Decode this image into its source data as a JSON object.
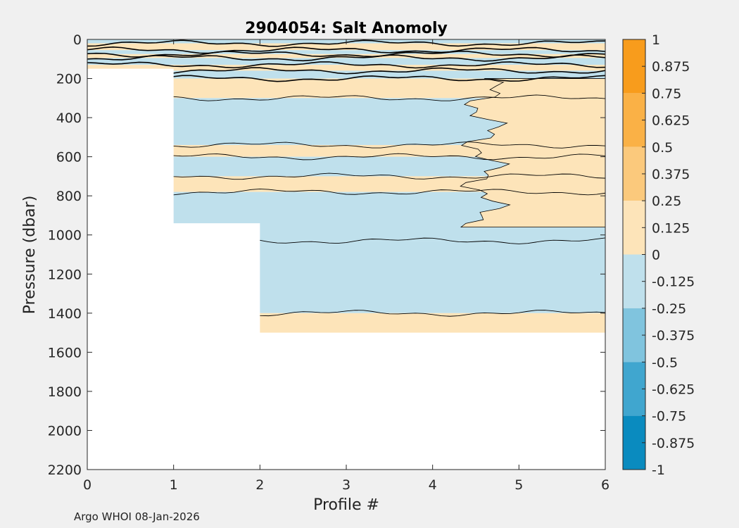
{
  "chart_data": {
    "type": "heatmap",
    "title": "2904054: Salt Anomoly",
    "xlabel": "Profile #",
    "ylabel": "Pressure (dbar)",
    "xlim": [
      0,
      6
    ],
    "ylim": [
      2200,
      0
    ],
    "x_ticks": [
      "0",
      "1",
      "2",
      "3",
      "4",
      "5",
      "6"
    ],
    "y_ticks": [
      "0",
      "200",
      "400",
      "600",
      "800",
      "1000",
      "1200",
      "1400",
      "1600",
      "1800",
      "2000",
      "2200"
    ],
    "colorbar": {
      "range": [
        -1,
        1
      ],
      "ticks": [
        "1",
        "0.875",
        "0.75",
        "0.625",
        "0.5",
        "0.375",
        "0.25",
        "0.125",
        "0",
        "-0.125",
        "-0.25",
        "-0.375",
        "-0.5",
        "-0.625",
        "-0.75",
        "-0.875",
        "-1"
      ],
      "levels": [
        {
          "min": 0.75,
          "max": 1,
          "color": "#f89c1c"
        },
        {
          "min": 0.5,
          "max": 0.75,
          "color": "#fab146"
        },
        {
          "min": 0.25,
          "max": 0.5,
          "color": "#fbc97c"
        },
        {
          "min": 0,
          "max": 0.25,
          "color": "#fde4b9"
        },
        {
          "min": -0.25,
          "max": 0,
          "color": "#bfe0ec"
        },
        {
          "min": -0.5,
          "max": -0.25,
          "color": "#80c4de"
        },
        {
          "min": -0.75,
          "max": -0.5,
          "color": "#40a6cf"
        },
        {
          "min": -1,
          "max": -0.75,
          "color": "#0a8bbf"
        }
      ]
    },
    "max_pressure_by_profile": [
      {
        "x": [
          0,
          1
        ],
        "p": 150
      },
      {
        "x": [
          1,
          2
        ],
        "p": 940
      },
      {
        "x": [
          2,
          6
        ],
        "p": 1500
      }
    ],
    "bands": [
      {
        "p_top": 0,
        "p_bot": 20,
        "level": "neg"
      },
      {
        "p_top": 20,
        "p_bot": 55,
        "level": "pos"
      },
      {
        "p_top": 55,
        "p_bot": 75,
        "level": "neg"
      },
      {
        "p_top": 75,
        "p_bot": 95,
        "level": "pos"
      },
      {
        "p_top": 95,
        "p_bot": 130,
        "level": "neg"
      },
      {
        "p_top": 130,
        "p_bot": 160,
        "level": "pos"
      },
      {
        "p_top": 160,
        "p_bot": 200,
        "level": "neg"
      },
      {
        "p_top": 200,
        "p_bot": 300,
        "level": "pos"
      },
      {
        "p_top": 300,
        "p_bot": 540,
        "level": "neg"
      },
      {
        "p_top": 540,
        "p_bot": 600,
        "level": "pos"
      },
      {
        "p_top": 600,
        "p_bot": 700,
        "level": "neg"
      },
      {
        "p_top": 700,
        "p_bot": 780,
        "level": "pos"
      },
      {
        "p_top": 780,
        "p_bot": 1030,
        "level": "neg"
      },
      {
        "p_top": 1030,
        "p_bot": 1400,
        "level": "neg"
      },
      {
        "p_top": 1400,
        "p_bot": 1500,
        "level": "pos"
      }
    ],
    "right_positive_region": {
      "x_from": 4.6,
      "p_top": 200,
      "p_bot": 960
    }
  },
  "footer": "Argo WHOI 08-Jan-2026"
}
